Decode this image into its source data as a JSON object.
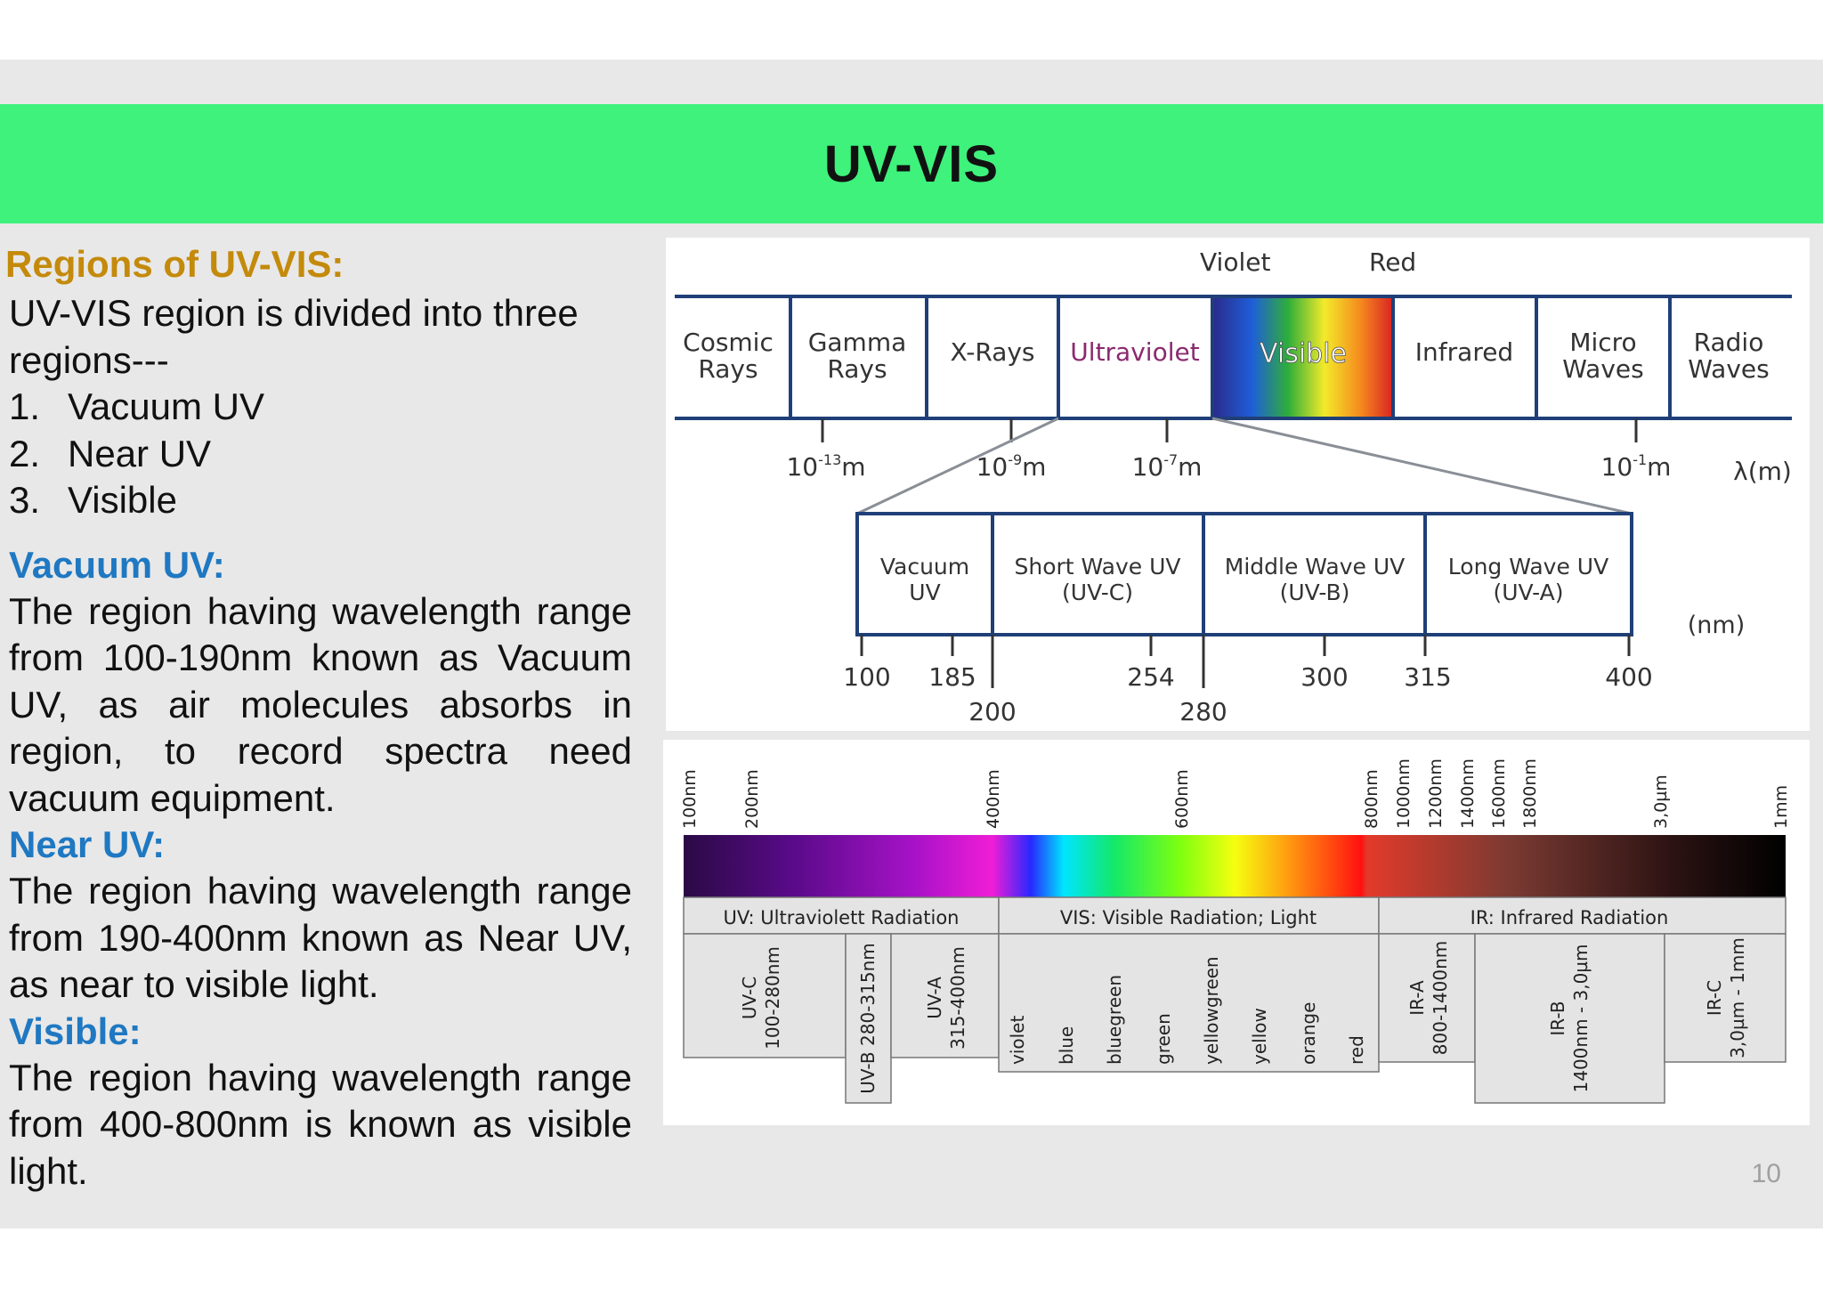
{
  "slide": {
    "title": "UV-VIS",
    "page_number": "10"
  },
  "left": {
    "regions_heading": "Regions of UV-VIS:",
    "intro": "UV-VIS region is divided into three regions---",
    "list": [
      {
        "num": "1.",
        "text": "Vacuum UV"
      },
      {
        "num": "2.",
        "text": "Near UV"
      },
      {
        "num": "3.",
        "text": "Visible"
      }
    ],
    "vacuum_heading": "Vacuum UV:",
    "vacuum_text": "The region having wavelength range from 100-190nm known as Vacuum UV, as air molecules absorbs in region, to record spectra need vacuum equipment.",
    "near_heading": "Near UV:",
    "near_text": "The region having wavelength range from 190-400nm known as Near UV, as near to visible light.",
    "visible_heading": "Visible:",
    "visible_text": "The region having wavelength range from 400-800nm is known as visible light."
  },
  "spectrum": {
    "top_labels": [
      "Violet",
      "Red"
    ],
    "bands": [
      {
        "line1": "Cosmic",
        "line2": "Rays"
      },
      {
        "line1": "Gamma",
        "line2": "Rays"
      },
      {
        "line1": "X-Rays",
        "line2": ""
      },
      {
        "line1": "Ultraviolet",
        "line2": ""
      },
      {
        "line1": "Visible",
        "line2": ""
      },
      {
        "line1": "Infrared",
        "line2": ""
      },
      {
        "line1": "Micro",
        "line2": "Waves"
      },
      {
        "line1": "Radio",
        "line2": "Waves"
      }
    ],
    "scale": [
      {
        "base": "10",
        "exp": "-13",
        "unit": "m"
      },
      {
        "base": "10",
        "exp": "-9",
        "unit": "m"
      },
      {
        "base": "10",
        "exp": "-7",
        "unit": "m"
      },
      {
        "base": "10",
        "exp": "-1",
        "unit": "m"
      }
    ],
    "lambda_label": "λ(m)",
    "uv_bands": [
      {
        "line1": "Vacuum",
        "line2": "UV"
      },
      {
        "line1": "Short Wave UV",
        "line2": "(UV-C)"
      },
      {
        "line1": "Middle Wave UV",
        "line2": "(UV-B)"
      },
      {
        "line1": "Long Wave UV",
        "line2": "(UV-A)"
      }
    ],
    "nm_label": "(nm)",
    "nm_ticks_upper": [
      "100",
      "185",
      "254",
      "300",
      "315",
      "400"
    ],
    "nm_ticks_lower": [
      "200",
      "280"
    ]
  },
  "detail": {
    "top_ticks": [
      "100nm",
      "200nm",
      "400nm",
      "600nm",
      "800nm",
      "1000nm",
      "1200nm",
      "1400nm",
      "1600nm",
      "1800nm",
      "3,0µm",
      "1mm"
    ],
    "groups": [
      "UV: Ultraviolett Radiation",
      "VIS: Visible Radiation; Light",
      "IR: Infrared Radiation"
    ],
    "uv_sub": [
      {
        "line1": "UV-C",
        "line2": "100-280nm"
      },
      {
        "line1": "UV-B 280-315nm",
        "line2": ""
      },
      {
        "line1": "UV-A",
        "line2": "315-400nm"
      }
    ],
    "colors": [
      "violet",
      "blue",
      "bluegreen",
      "green",
      "yellowgreen",
      "yellow",
      "orange",
      "red"
    ],
    "ir_sub": [
      {
        "line1": "IR-A",
        "line2": "800-1400nm"
      },
      {
        "line1": "IR-B",
        "line2": "1400nm - 3,0µm"
      },
      {
        "line1": "IR-C",
        "line2": "3,0µm - 1mm"
      }
    ]
  }
}
